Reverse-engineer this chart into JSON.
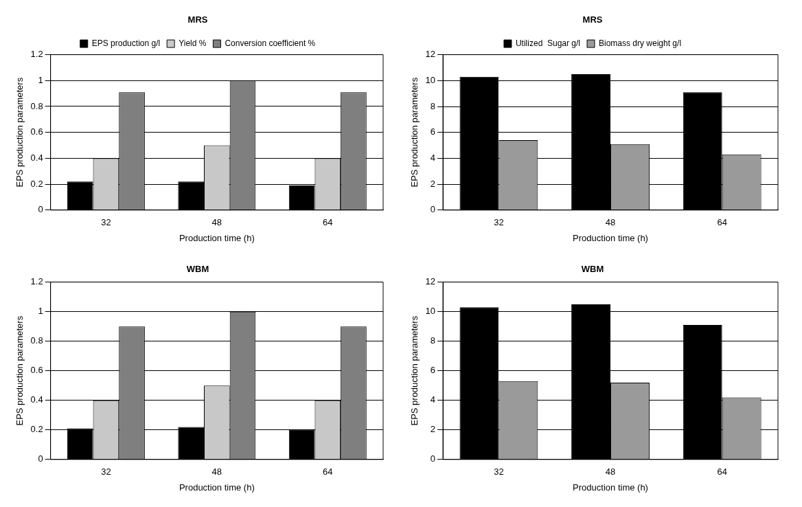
{
  "chart_data": [
    {
      "type": "bar",
      "title": "MRS",
      "xlabel": "Production time (h)",
      "ylabel": "EPS production parameters",
      "categories": [
        "32",
        "48",
        "64"
      ],
      "series": [
        {
          "name": "EPS production g/l",
          "color": "#000000",
          "values": [
            0.22,
            0.22,
            0.19
          ]
        },
        {
          "name": "Yield %",
          "color": "#c8c8c8",
          "values": [
            0.4,
            0.5,
            0.4
          ]
        },
        {
          "name": "Conversion coefficient %",
          "color": "#7f7f7f",
          "values": [
            0.91,
            1.0,
            0.91
          ]
        }
      ],
      "ylim": [
        0,
        1.2
      ],
      "yticks": [
        0,
        0.2,
        0.4,
        0.6,
        0.8,
        1,
        1.2
      ],
      "grid": "y",
      "legend": "top"
    },
    {
      "type": "bar",
      "title": "MRS",
      "xlabel": "Production time (h)",
      "ylabel": "EPS production parameters",
      "categories": [
        "32",
        "48",
        "64"
      ],
      "series": [
        {
          "name": "Utilized  Sugar g/l",
          "color": "#000000",
          "values": [
            10.3,
            10.5,
            9.1
          ]
        },
        {
          "name": "Biomass dry weight g/l",
          "color": "#9a9a9a",
          "values": [
            5.4,
            5.1,
            4.3
          ]
        }
      ],
      "ylim": [
        0,
        12
      ],
      "yticks": [
        0,
        2,
        4,
        6,
        8,
        10,
        12
      ],
      "grid": "y",
      "legend": "top"
    },
    {
      "type": "bar",
      "title": "WBM",
      "xlabel": "Production time (h)",
      "ylabel": "EPS production parameters",
      "categories": [
        "32",
        "48",
        "64"
      ],
      "series": [
        {
          "color": "#000000",
          "values": [
            0.21,
            0.22,
            0.2
          ]
        },
        {
          "color": "#c8c8c8",
          "values": [
            0.4,
            0.5,
            0.4
          ]
        },
        {
          "color": "#7f7f7f",
          "values": [
            0.9,
            1.0,
            0.9
          ]
        }
      ],
      "ylim": [
        0,
        1.2
      ],
      "yticks": [
        0,
        0.2,
        0.4,
        0.6,
        0.8,
        1,
        1.2
      ],
      "grid": "y"
    },
    {
      "type": "bar",
      "title": "WBM",
      "xlabel": "Production time (h)",
      "ylabel": "EPS production parameters",
      "categories": [
        "32",
        "48",
        "64"
      ],
      "series": [
        {
          "color": "#000000",
          "values": [
            10.3,
            10.5,
            9.1
          ]
        },
        {
          "color": "#9a9a9a",
          "values": [
            5.3,
            5.2,
            4.2
          ]
        }
      ],
      "ylim": [
        0,
        12
      ],
      "yticks": [
        0,
        2,
        4,
        6,
        8,
        10,
        12
      ],
      "grid": "y"
    }
  ]
}
